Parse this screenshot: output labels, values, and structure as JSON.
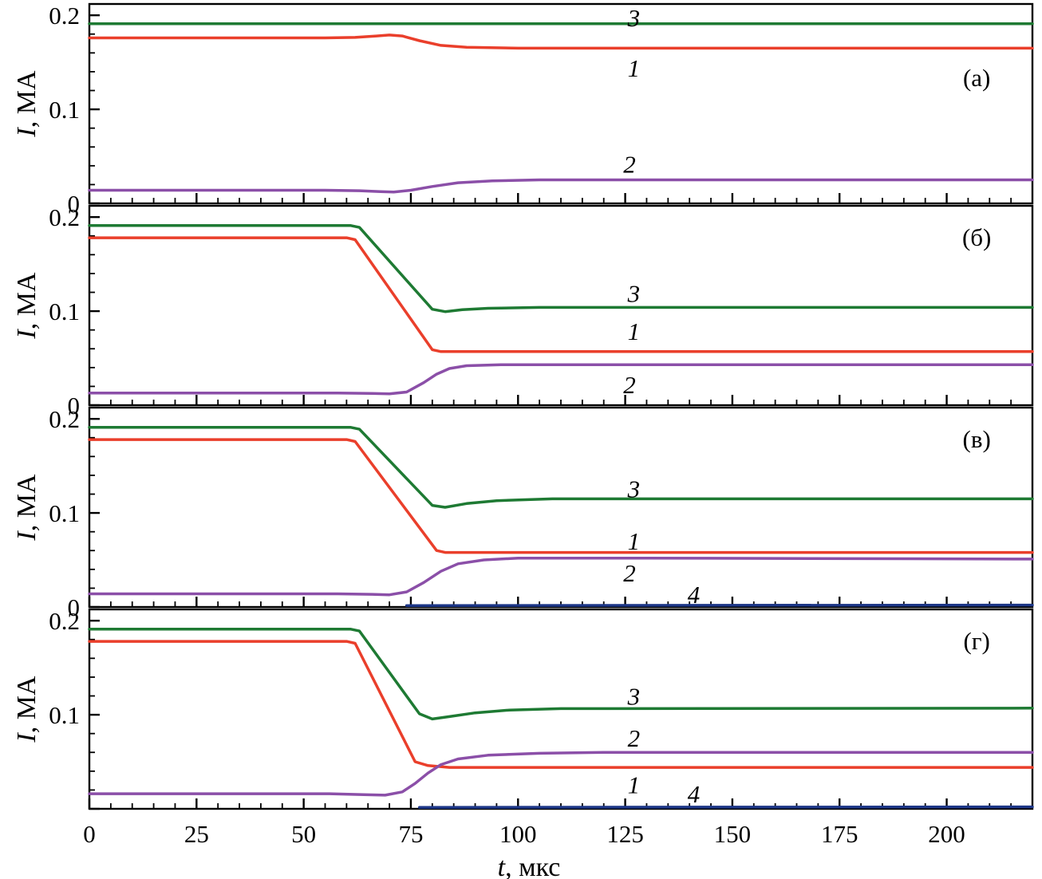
{
  "figure": {
    "background": "#ffffff",
    "axis_color": "#000000",
    "x_axis": {
      "label_italic": "t",
      "label_rest": ", мкс",
      "tick_values": [
        0,
        25,
        50,
        75,
        100,
        125,
        150,
        175,
        200
      ],
      "tick_labels": [
        "0",
        "25",
        "50",
        "75",
        "100",
        "125",
        "150",
        "175",
        "200"
      ]
    },
    "y_axis": {
      "label_italic": "I",
      "label_rest": ", МА"
    }
  },
  "chart_data": [
    {
      "type": "line",
      "panel_label": "(а)",
      "xlim": [
        0,
        220
      ],
      "ylim": [
        0,
        0.212
      ],
      "grid": false,
      "yticks": [
        {
          "v": 0,
          "label": "0"
        },
        {
          "v": 0.1,
          "label": "0.1"
        },
        {
          "v": 0.2,
          "label": "0.2"
        }
      ],
      "series": [
        {
          "name": "3",
          "color": "#1e7a33",
          "points": [
            [
              0,
              0.191
            ],
            [
              220,
              0.191
            ]
          ]
        },
        {
          "name": "1",
          "color": "#ea3f2b",
          "points": [
            [
              0,
              0.176
            ],
            [
              55,
              0.176
            ],
            [
              62,
              0.1765
            ],
            [
              67,
              0.178
            ],
            [
              70,
              0.179
            ],
            [
              73,
              0.178
            ],
            [
              77,
              0.173
            ],
            [
              82,
              0.168
            ],
            [
              88,
              0.166
            ],
            [
              100,
              0.165
            ],
            [
              220,
              0.165
            ]
          ]
        },
        {
          "name": "2",
          "color": "#8b4fa8",
          "points": [
            [
              0,
              0.014
            ],
            [
              55,
              0.014
            ],
            [
              63,
              0.0135
            ],
            [
              68,
              0.0125
            ],
            [
              71,
              0.012
            ],
            [
              75,
              0.014
            ],
            [
              80,
              0.018
            ],
            [
              86,
              0.022
            ],
            [
              94,
              0.024
            ],
            [
              105,
              0.025
            ],
            [
              220,
              0.025
            ]
          ]
        }
      ],
      "annotations": [
        {
          "text": "3",
          "x": 127,
          "y": 0.1975,
          "italic": true
        },
        {
          "text": "1",
          "x": 127,
          "y": 0.144,
          "italic": true
        },
        {
          "text": "2",
          "x": 126,
          "y": 0.042,
          "italic": true
        },
        {
          "text": "(а)",
          "x": 207,
          "y": 0.134,
          "italic": false
        }
      ]
    },
    {
      "type": "line",
      "panel_label": "(б)",
      "xlim": [
        0,
        220
      ],
      "ylim": [
        0,
        0.212
      ],
      "grid": false,
      "yticks": [
        {
          "v": 0,
          "label": "0"
        },
        {
          "v": 0.1,
          "label": "0.1"
        },
        {
          "v": 0.2,
          "label": "0.2"
        }
      ],
      "series": [
        {
          "name": "3",
          "color": "#1e7a33",
          "points": [
            [
              0,
              0.191
            ],
            [
              61,
              0.191
            ],
            [
              63,
              0.189
            ],
            [
              80,
              0.102
            ],
            [
              83,
              0.0995
            ],
            [
              87,
              0.1015
            ],
            [
              93,
              0.103
            ],
            [
              105,
              0.104
            ],
            [
              220,
              0.104
            ]
          ]
        },
        {
          "name": "1",
          "color": "#ea3f2b",
          "points": [
            [
              0,
              0.178
            ],
            [
              60,
              0.178
            ],
            [
              62,
              0.176
            ],
            [
              80,
              0.059
            ],
            [
              82,
              0.057
            ],
            [
              220,
              0.057
            ]
          ]
        },
        {
          "name": "2",
          "color": "#8b4fa8",
          "points": [
            [
              0,
              0.013
            ],
            [
              58,
              0.013
            ],
            [
              66,
              0.0125
            ],
            [
              70,
              0.012
            ],
            [
              74,
              0.014
            ],
            [
              78,
              0.024
            ],
            [
              81,
              0.033
            ],
            [
              84,
              0.039
            ],
            [
              88,
              0.042
            ],
            [
              96,
              0.043
            ],
            [
              220,
              0.043
            ]
          ]
        }
      ],
      "annotations": [
        {
          "text": "3",
          "x": 127,
          "y": 0.119,
          "italic": true
        },
        {
          "text": "1",
          "x": 127,
          "y": 0.079,
          "italic": true
        },
        {
          "text": "2",
          "x": 126,
          "y": 0.022,
          "italic": true
        },
        {
          "text": "(б)",
          "x": 207,
          "y": 0.179,
          "italic": false
        }
      ]
    },
    {
      "type": "line",
      "panel_label": "(в)",
      "xlim": [
        0,
        220
      ],
      "ylim": [
        0,
        0.212
      ],
      "grid": false,
      "yticks": [
        {
          "v": 0,
          "label": "0"
        },
        {
          "v": 0.1,
          "label": "0.1"
        },
        {
          "v": 0.2,
          "label": "0.2"
        }
      ],
      "series": [
        {
          "name": "3",
          "color": "#1e7a33",
          "points": [
            [
              0,
              0.191
            ],
            [
              61,
              0.191
            ],
            [
              63,
              0.189
            ],
            [
              80,
              0.108
            ],
            [
              83,
              0.106
            ],
            [
              88,
              0.11
            ],
            [
              95,
              0.113
            ],
            [
              108,
              0.115
            ],
            [
              220,
              0.115
            ]
          ]
        },
        {
          "name": "1",
          "color": "#ea3f2b",
          "points": [
            [
              0,
              0.178
            ],
            [
              60,
              0.178
            ],
            [
              62,
              0.176
            ],
            [
              81,
              0.06
            ],
            [
              83,
              0.058
            ],
            [
              220,
              0.058
            ]
          ]
        },
        {
          "name": "2",
          "color": "#8b4fa8",
          "points": [
            [
              0,
              0.014
            ],
            [
              58,
              0.014
            ],
            [
              66,
              0.0135
            ],
            [
              70,
              0.013
            ],
            [
              74,
              0.016
            ],
            [
              78,
              0.026
            ],
            [
              82,
              0.038
            ],
            [
              86,
              0.046
            ],
            [
              92,
              0.05
            ],
            [
              100,
              0.052
            ],
            [
              130,
              0.052
            ],
            [
              220,
              0.051
            ]
          ]
        },
        {
          "name": "4",
          "color": "#1c3687",
          "points": [
            [
              74,
              0.0015
            ],
            [
              220,
              0.002
            ]
          ]
        }
      ],
      "annotations": [
        {
          "text": "3",
          "x": 127,
          "y": 0.126,
          "italic": true
        },
        {
          "text": "1",
          "x": 127,
          "y": 0.0705,
          "italic": true
        },
        {
          "text": "2",
          "x": 126,
          "y": 0.0365,
          "italic": true
        },
        {
          "text": "4",
          "x": 141,
          "y": 0.0135,
          "italic": true
        },
        {
          "text": "(в)",
          "x": 207,
          "y": 0.179,
          "italic": false
        }
      ]
    },
    {
      "type": "line",
      "panel_label": "(г)",
      "xlim": [
        0,
        220
      ],
      "ylim": [
        0,
        0.212
      ],
      "grid": false,
      "yticks": [
        {
          "v": 0,
          "label": ""
        },
        {
          "v": 0.1,
          "label": "0.1"
        },
        {
          "v": 0.2,
          "label": "0.2"
        }
      ],
      "series": [
        {
          "name": "3",
          "color": "#1e7a33",
          "points": [
            [
              0,
              0.191
            ],
            [
              61,
              0.191
            ],
            [
              63,
              0.189
            ],
            [
              77,
              0.101
            ],
            [
              80,
              0.0955
            ],
            [
              84,
              0.098
            ],
            [
              90,
              0.102
            ],
            [
              98,
              0.105
            ],
            [
              110,
              0.1065
            ],
            [
              220,
              0.107
            ]
          ]
        },
        {
          "name": "1",
          "color": "#ea3f2b",
          "points": [
            [
              0,
              0.178
            ],
            [
              60,
              0.178
            ],
            [
              62,
              0.176
            ],
            [
              76,
              0.05
            ],
            [
              79,
              0.046
            ],
            [
              84,
              0.044
            ],
            [
              220,
              0.044
            ]
          ]
        },
        {
          "name": "2",
          "color": "#8b4fa8",
          "points": [
            [
              0,
              0.016
            ],
            [
              56,
              0.016
            ],
            [
              64,
              0.015
            ],
            [
              69,
              0.0145
            ],
            [
              73,
              0.018
            ],
            [
              76,
              0.027
            ],
            [
              79,
              0.038
            ],
            [
              82,
              0.047
            ],
            [
              86,
              0.053
            ],
            [
              93,
              0.057
            ],
            [
              105,
              0.059
            ],
            [
              120,
              0.06
            ],
            [
              220,
              0.06
            ]
          ]
        },
        {
          "name": "4",
          "color": "#1c3687",
          "points": [
            [
              77,
              0.0015
            ],
            [
              220,
              0.002
            ]
          ]
        }
      ],
      "annotations": [
        {
          "text": "3",
          "x": 127,
          "y": 0.12,
          "italic": true
        },
        {
          "text": "2",
          "x": 127,
          "y": 0.0755,
          "italic": true
        },
        {
          "text": "1",
          "x": 127,
          "y": 0.026,
          "italic": true
        },
        {
          "text": "4",
          "x": 141,
          "y": 0.016,
          "italic": true
        },
        {
          "text": "(г)",
          "x": 207,
          "y": 0.179,
          "italic": false
        }
      ]
    }
  ]
}
